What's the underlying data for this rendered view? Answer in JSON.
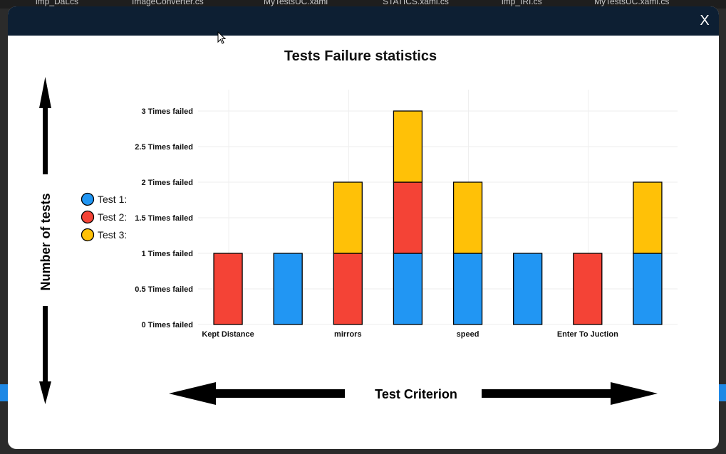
{
  "window": {
    "close_label": "X"
  },
  "background_tabs": [
    "imp_DaLcs",
    "ImageConverter.cs",
    "MyTestsUC.xaml",
    "STATICS.xaml.cs",
    "imp_IRI.cs",
    "MyTestsUC.xaml.cs"
  ],
  "chart_data": {
    "type": "bar",
    "stacked": true,
    "title": "Tests Failure statistics",
    "xlabel": "Test Criterion",
    "ylabel": "Number of tests",
    "ylim": [
      0,
      3.2
    ],
    "y_ticks": [
      {
        "value": 0,
        "label": "0 Times failed"
      },
      {
        "value": 0.5,
        "label": "0.5 Times failed"
      },
      {
        "value": 1,
        "label": "1 Times failed"
      },
      {
        "value": 1.5,
        "label": "1.5 Times failed"
      },
      {
        "value": 2,
        "label": "2 Times failed"
      },
      {
        "value": 2.5,
        "label": "2.5 Times failed"
      },
      {
        "value": 3,
        "label": "3 Times failed"
      }
    ],
    "categories": [
      "Kept Distance",
      "",
      "mirrors",
      "",
      "speed",
      "",
      "Enter To Juction",
      ""
    ],
    "grid": true,
    "legend_position": "left",
    "series": [
      {
        "name": "Test 1:",
        "color": "#2196f3",
        "values": [
          0,
          1,
          0,
          1,
          1,
          1,
          0,
          1
        ]
      },
      {
        "name": "Test 2:",
        "color": "#f44336",
        "values": [
          1,
          0,
          1,
          1,
          0,
          0,
          1,
          0
        ]
      },
      {
        "name": "Test 3:",
        "color": "#ffc107",
        "values": [
          0,
          0,
          1,
          1,
          1,
          0,
          0,
          1
        ]
      }
    ]
  }
}
